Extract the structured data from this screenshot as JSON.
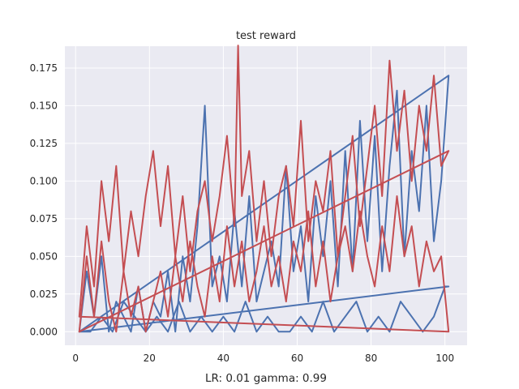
{
  "chart_data": {
    "type": "line",
    "title": "test reward",
    "xlabel": "LR: 0.01 gamma: 0.99",
    "ylabel": "",
    "xlim": [
      -2.9,
      106
    ],
    "ylim": [
      -0.009,
      0.1895
    ],
    "xticks": [
      0,
      20,
      40,
      60,
      80,
      100
    ],
    "yticks": [
      0.0,
      0.025,
      0.05,
      0.075,
      0.1,
      0.125,
      0.15,
      0.175
    ],
    "xtick_labels": [
      "0",
      "20",
      "40",
      "60",
      "80",
      "100"
    ],
    "ytick_labels": [
      "0.000",
      "0.025",
      "0.050",
      "0.075",
      "0.100",
      "0.125",
      "0.150",
      "0.175"
    ],
    "grid": true,
    "background": "#eaeaf2",
    "colors": {
      "blue": "#4c72b0",
      "red": "#c44e52"
    },
    "series": [
      {
        "color": "#4c72b0",
        "x": [
          1,
          3,
          5,
          7,
          9,
          11,
          13,
          15,
          17,
          19,
          21,
          23,
          25,
          27,
          29,
          31,
          33,
          35,
          37,
          39,
          41,
          43,
          45,
          47,
          49,
          51,
          53,
          55,
          57,
          59,
          61,
          63,
          65,
          67,
          69,
          71,
          73,
          75,
          77,
          79,
          81,
          83,
          85,
          87,
          89,
          91,
          93,
          95,
          97,
          99,
          101,
          1,
          101
        ],
        "y": [
          0.0,
          0.04,
          0.01,
          0.05,
          0.0,
          0.02,
          0.01,
          0.0,
          0.03,
          0.0,
          0.02,
          0.01,
          0.04,
          0.0,
          0.05,
          0.02,
          0.07,
          0.15,
          0.03,
          0.05,
          0.02,
          0.08,
          0.03,
          0.09,
          0.02,
          0.04,
          0.06,
          0.03,
          0.11,
          0.04,
          0.07,
          0.02,
          0.09,
          0.05,
          0.1,
          0.03,
          0.12,
          0.04,
          0.14,
          0.06,
          0.13,
          0.04,
          0.11,
          0.16,
          0.05,
          0.12,
          0.08,
          0.15,
          0.06,
          0.1,
          0.17,
          0.0,
          0.17
        ]
      },
      {
        "color": "#4c72b0",
        "x": [
          1,
          4,
          7,
          10,
          13,
          16,
          19,
          22,
          25,
          28,
          31,
          34,
          37,
          40,
          43,
          46,
          49,
          52,
          55,
          58,
          61,
          64,
          67,
          70,
          73,
          76,
          79,
          82,
          85,
          88,
          91,
          94,
          97,
          100,
          101,
          1,
          101
        ],
        "y": [
          0.0,
          0.0,
          0.01,
          0.0,
          0.02,
          0.01,
          0.0,
          0.01,
          0.0,
          0.02,
          0.0,
          0.01,
          0.0,
          0.01,
          0.0,
          0.02,
          0.0,
          0.01,
          0.0,
          0.0,
          0.01,
          0.0,
          0.02,
          0.0,
          0.01,
          0.02,
          0.0,
          0.01,
          0.0,
          0.02,
          0.01,
          0.0,
          0.01,
          0.03,
          0.03,
          0.0,
          0.03
        ]
      },
      {
        "color": "#c44e52",
        "x": [
          1,
          3,
          5,
          7,
          9,
          11,
          13,
          15,
          17,
          19,
          21,
          23,
          25,
          27,
          29,
          31,
          33,
          35,
          37,
          39,
          41,
          43,
          44,
          45,
          47,
          49,
          51,
          53,
          55,
          57,
          59,
          61,
          63,
          65,
          67,
          69,
          71,
          73,
          75,
          77,
          79,
          81,
          83,
          85,
          87,
          89,
          91,
          93,
          95,
          97,
          99,
          101,
          1,
          101
        ],
        "y": [
          0.01,
          0.07,
          0.03,
          0.1,
          0.06,
          0.11,
          0.04,
          0.08,
          0.05,
          0.09,
          0.12,
          0.07,
          0.11,
          0.05,
          0.09,
          0.04,
          0.08,
          0.1,
          0.06,
          0.09,
          0.13,
          0.07,
          0.19,
          0.09,
          0.12,
          0.06,
          0.1,
          0.05,
          0.09,
          0.11,
          0.07,
          0.14,
          0.06,
          0.1,
          0.08,
          0.12,
          0.05,
          0.09,
          0.13,
          0.07,
          0.11,
          0.15,
          0.09,
          0.18,
          0.12,
          0.16,
          0.1,
          0.15,
          0.12,
          0.17,
          0.11,
          0.12,
          0.0,
          0.12
        ]
      },
      {
        "color": "#c44e52",
        "x": [
          1,
          3,
          5,
          7,
          9,
          11,
          13,
          15,
          17,
          19,
          21,
          23,
          25,
          27,
          29,
          31,
          33,
          35,
          37,
          39,
          41,
          43,
          45,
          47,
          49,
          51,
          53,
          55,
          57,
          59,
          61,
          63,
          65,
          67,
          69,
          71,
          73,
          75,
          77,
          79,
          81,
          83,
          85,
          87,
          89,
          91,
          93,
          95,
          97,
          99,
          101,
          1,
          101
        ],
        "y": [
          0.0,
          0.05,
          0.01,
          0.06,
          0.02,
          0.0,
          0.04,
          0.01,
          0.03,
          0.0,
          0.02,
          0.04,
          0.01,
          0.05,
          0.02,
          0.06,
          0.03,
          0.01,
          0.05,
          0.02,
          0.07,
          0.03,
          0.06,
          0.02,
          0.04,
          0.07,
          0.03,
          0.05,
          0.02,
          0.06,
          0.04,
          0.08,
          0.03,
          0.06,
          0.02,
          0.05,
          0.07,
          0.04,
          0.08,
          0.05,
          0.03,
          0.07,
          0.04,
          0.09,
          0.05,
          0.07,
          0.03,
          0.06,
          0.04,
          0.05,
          0.0,
          0.01,
          0.0
        ]
      }
    ]
  }
}
